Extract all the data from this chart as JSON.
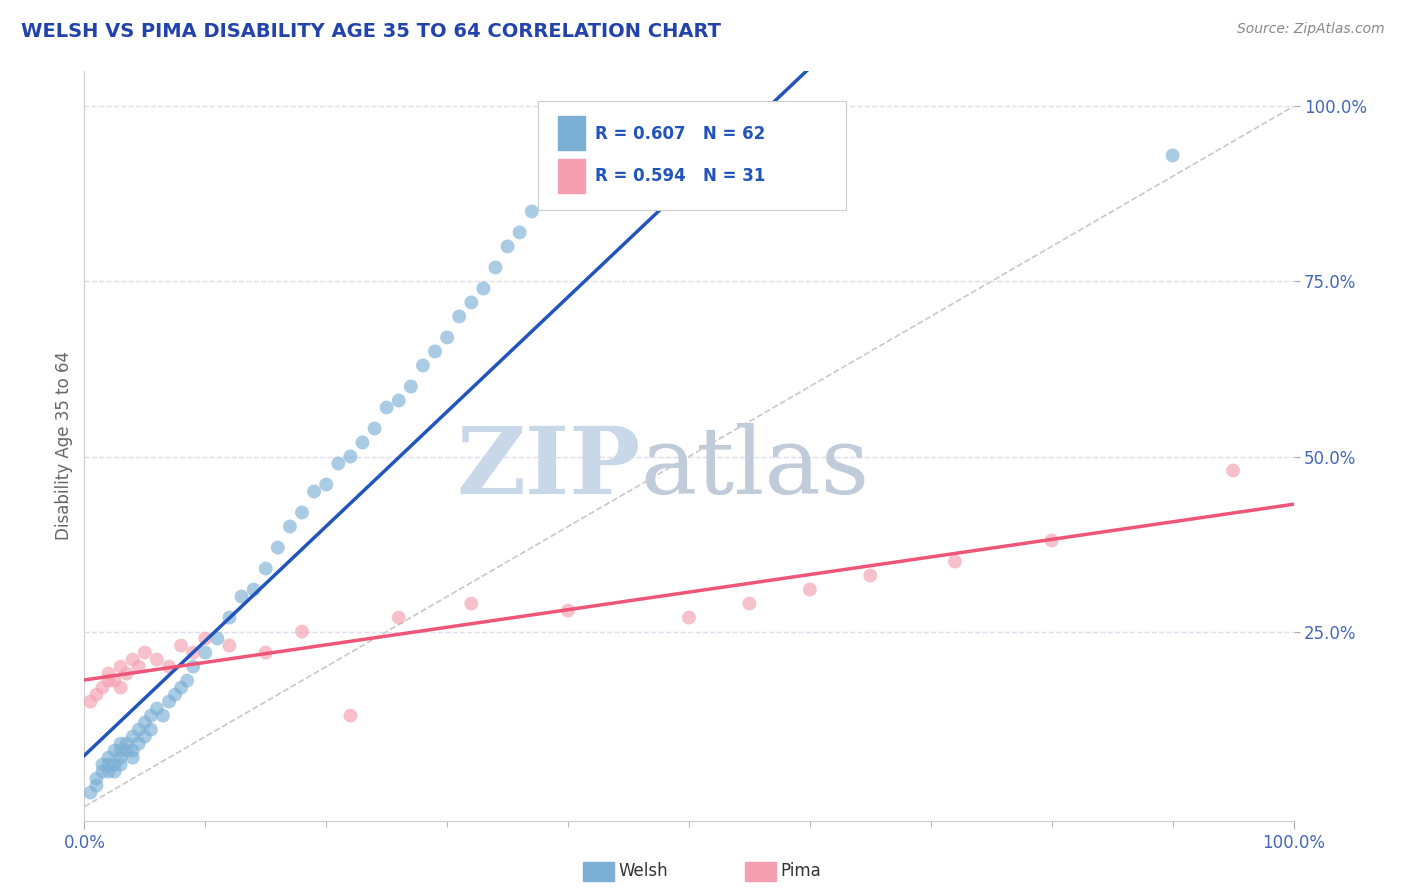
{
  "title": "WELSH VS PIMA DISABILITY AGE 35 TO 64 CORRELATION CHART",
  "source_text": "Source: ZipAtlas.com",
  "ylabel": "Disability Age 35 to 64",
  "R_welsh": 0.607,
  "N_welsh": 62,
  "R_pima": 0.594,
  "N_pima": 31,
  "welsh_color": "#7BAFD4",
  "pima_color": "#F4A0B0",
  "trend_welsh_color": "#2255BB",
  "trend_pima_color": "#EE5577",
  "ref_line_color": "#BBBBBB",
  "title_color": "#2244AA",
  "source_color": "#888888",
  "watermark_zip_color": "#C8D8E8",
  "watermark_atlas_color": "#C0CCDA",
  "axis_label_color": "#666666",
  "tick_label_color": "#4466BB",
  "legend_text_color": "#2255BB",
  "legend_border_color": "#CCCCCC",
  "background_color": "#FFFFFF",
  "grid_color": "#DDDDEE",
  "welsh_x": [
    0.005,
    0.01,
    0.01,
    0.015,
    0.015,
    0.02,
    0.02,
    0.02,
    0.025,
    0.025,
    0.025,
    0.03,
    0.03,
    0.03,
    0.03,
    0.035,
    0.035,
    0.04,
    0.04,
    0.04,
    0.045,
    0.045,
    0.05,
    0.05,
    0.055,
    0.055,
    0.06,
    0.065,
    0.07,
    0.075,
    0.08,
    0.085,
    0.09,
    0.1,
    0.11,
    0.12,
    0.13,
    0.14,
    0.15,
    0.16,
    0.17,
    0.18,
    0.19,
    0.2,
    0.21,
    0.22,
    0.23,
    0.24,
    0.25,
    0.26,
    0.27,
    0.28,
    0.29,
    0.3,
    0.31,
    0.32,
    0.33,
    0.34,
    0.35,
    0.36,
    0.37,
    0.9
  ],
  "welsh_y": [
    0.02,
    0.03,
    0.04,
    0.05,
    0.06,
    0.05,
    0.06,
    0.07,
    0.05,
    0.06,
    0.08,
    0.06,
    0.07,
    0.08,
    0.09,
    0.08,
    0.09,
    0.07,
    0.08,
    0.1,
    0.09,
    0.11,
    0.1,
    0.12,
    0.11,
    0.13,
    0.14,
    0.13,
    0.15,
    0.16,
    0.17,
    0.18,
    0.2,
    0.22,
    0.24,
    0.27,
    0.3,
    0.31,
    0.34,
    0.37,
    0.4,
    0.42,
    0.45,
    0.46,
    0.49,
    0.5,
    0.52,
    0.54,
    0.57,
    0.58,
    0.6,
    0.63,
    0.65,
    0.67,
    0.7,
    0.72,
    0.74,
    0.77,
    0.8,
    0.82,
    0.85,
    0.93
  ],
  "pima_x": [
    0.005,
    0.01,
    0.015,
    0.02,
    0.02,
    0.025,
    0.03,
    0.03,
    0.035,
    0.04,
    0.045,
    0.05,
    0.06,
    0.07,
    0.08,
    0.09,
    0.1,
    0.12,
    0.15,
    0.18,
    0.22,
    0.26,
    0.32,
    0.4,
    0.5,
    0.55,
    0.6,
    0.65,
    0.72,
    0.8,
    0.95
  ],
  "pima_y": [
    0.15,
    0.16,
    0.17,
    0.18,
    0.19,
    0.18,
    0.17,
    0.2,
    0.19,
    0.21,
    0.2,
    0.22,
    0.21,
    0.2,
    0.23,
    0.22,
    0.24,
    0.23,
    0.22,
    0.25,
    0.13,
    0.27,
    0.29,
    0.28,
    0.27,
    0.29,
    0.31,
    0.33,
    0.35,
    0.38,
    0.48
  ],
  "xlim": [
    0.0,
    1.0
  ],
  "ylim": [
    -0.02,
    1.05
  ],
  "xtick_positions": [
    0.0,
    1.0
  ],
  "xticklabels": [
    "0.0%",
    "100.0%"
  ],
  "ytick_positions": [
    0.25,
    0.5,
    0.75,
    1.0
  ],
  "yticklabels": [
    "25.0%",
    "50.0%",
    "75.0%",
    "100.0%"
  ],
  "marker_size": 100,
  "marker_alpha": 0.65
}
